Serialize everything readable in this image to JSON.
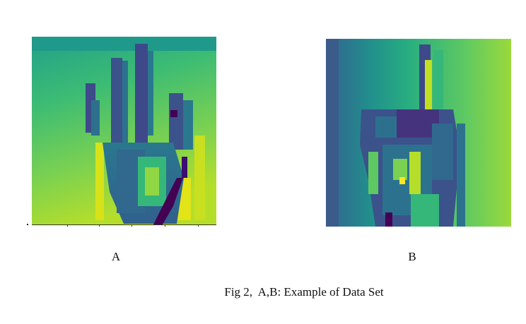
{
  "figure": {
    "panels": [
      {
        "label": "A",
        "description_icon": "hand-sign-image",
        "colormap": "viridis"
      },
      {
        "label": "B",
        "description_icon": "hand-sign-image",
        "colormap": "viridis"
      }
    ],
    "caption": "Fig 2,  A,B: Example of Data Set"
  },
  "colors": {
    "dark_purple": "#440154",
    "blue": "#3b528b",
    "teal": "#21918c",
    "green": "#5ec962",
    "yellow": "#fde725"
  }
}
